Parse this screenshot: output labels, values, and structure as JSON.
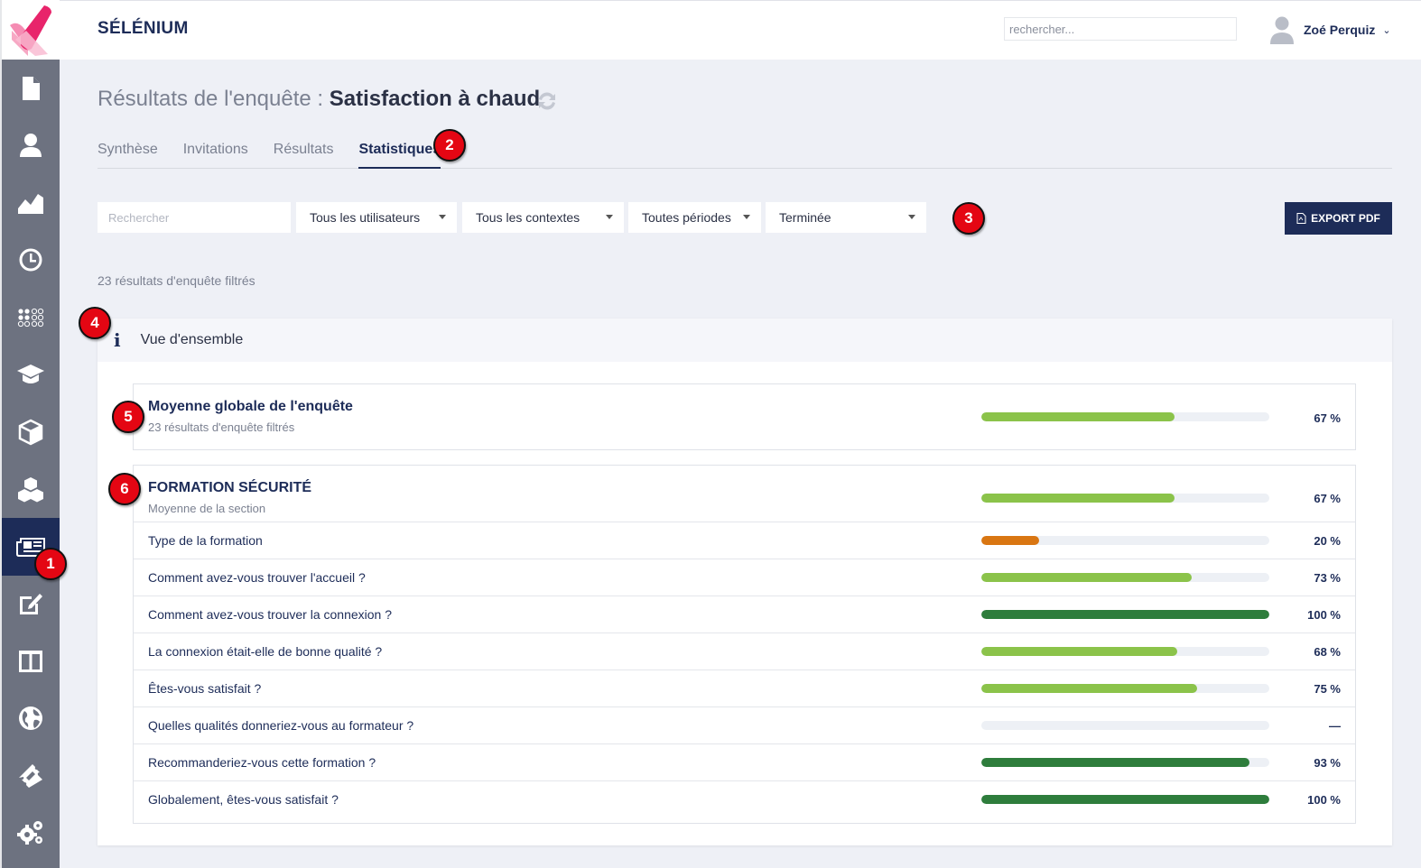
{
  "app": {
    "brand": "SÉLÉNIUM"
  },
  "header": {
    "search_placeholder": "rechercher...",
    "user_name": "Zoé Perquiz"
  },
  "sidebar": {
    "items": [
      {
        "icon": "document-icon",
        "active": false
      },
      {
        "icon": "user-icon",
        "active": false
      },
      {
        "icon": "area-chart-icon",
        "active": false
      },
      {
        "icon": "clock-icon",
        "active": false
      },
      {
        "icon": "dots-grid-icon",
        "active": false
      },
      {
        "icon": "graduation-cap-icon",
        "active": false
      },
      {
        "icon": "cube-icon",
        "active": false
      },
      {
        "icon": "cubes-icon",
        "active": false
      },
      {
        "icon": "newspaper-icon",
        "active": true
      },
      {
        "icon": "edit-icon",
        "active": false
      },
      {
        "icon": "columns-icon",
        "active": false
      },
      {
        "icon": "globe-icon",
        "active": false
      },
      {
        "icon": "ticket-icon",
        "active": false
      },
      {
        "icon": "gears-icon",
        "active": false
      }
    ]
  },
  "page": {
    "title_prefix": "Résultats de l'enquête : ",
    "title_name": "Satisfaction à chaud"
  },
  "tabs": [
    {
      "label": "Synthèse",
      "active": false
    },
    {
      "label": "Invitations",
      "active": false
    },
    {
      "label": "Résultats",
      "active": false
    },
    {
      "label": "Statistiques",
      "active": true
    }
  ],
  "filters": {
    "search_placeholder": "Rechercher",
    "users": "Tous les utilisateurs",
    "contexts": "Tous les contextes",
    "periods": "Toutes périodes",
    "status": "Terminée",
    "export_label": "EXPORT PDF"
  },
  "results_count": "23 résultats d'enquête filtrés",
  "overview": {
    "title": "Vue d'ensemble",
    "global": {
      "title": "Moyenne globale de l'enquête",
      "subtitle": "23 résultats d'enquête filtrés",
      "value": 67,
      "pct_label": "67 %",
      "color": "#8bc34a"
    },
    "section": {
      "title": "FORMATION SÉCURITÉ",
      "subtitle": "Moyenne de la section",
      "value": 67,
      "pct_label": "67 %",
      "color": "#8bc34a",
      "questions": [
        {
          "label": "Type de la formation",
          "value": 20,
          "pct_label": "20 %",
          "color": "#d97612"
        },
        {
          "label": "Comment avez-vous trouver l'accueil ?",
          "value": 73,
          "pct_label": "73 %",
          "color": "#8bc34a"
        },
        {
          "label": "Comment avez-vous trouver la connexion ?",
          "value": 100,
          "pct_label": "100 %",
          "color": "#2e7d3c"
        },
        {
          "label": "La connexion était-elle de bonne qualité ?",
          "value": 68,
          "pct_label": "68 %",
          "color": "#8bc34a"
        },
        {
          "label": "Êtes-vous satisfait ?",
          "value": 75,
          "pct_label": "75 %",
          "color": "#8bc34a"
        },
        {
          "label": "Quelles qualités donneriez-vous au formateur ?",
          "value": 0,
          "pct_label": "—",
          "color": "#8bc34a"
        },
        {
          "label": "Recommanderiez-vous cette formation ?",
          "value": 93,
          "pct_label": "93 %",
          "color": "#2e7d3c"
        },
        {
          "label": "Globalement, êtes-vous satisfait ?",
          "value": 100,
          "pct_label": "100 %",
          "color": "#2e7d3c"
        }
      ]
    }
  },
  "markers": [
    "1",
    "2",
    "3",
    "4",
    "5",
    "6"
  ]
}
